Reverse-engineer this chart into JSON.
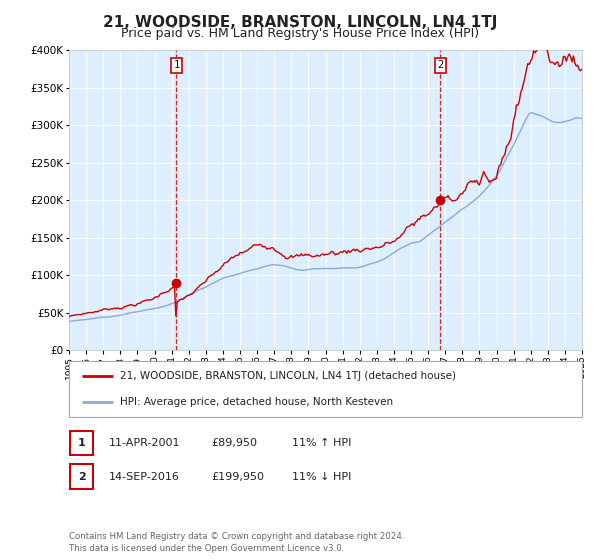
{
  "title": "21, WOODSIDE, BRANSTON, LINCOLN, LN4 1TJ",
  "subtitle": "Price paid vs. HM Land Registry's House Price Index (HPI)",
  "legend_line1": "21, WOODSIDE, BRANSTON, LINCOLN, LN4 1TJ (detached house)",
  "legend_line2": "HPI: Average price, detached house, North Kesteven",
  "annotation1_date": "11-APR-2001",
  "annotation1_price": "£89,950",
  "annotation1_hpi": "11% ↑ HPI",
  "annotation1_year": 2001.28,
  "annotation1_value": 89950,
  "annotation2_date": "14-SEP-2016",
  "annotation2_price": "£199,950",
  "annotation2_hpi": "11% ↓ HPI",
  "annotation2_year": 2016.71,
  "annotation2_value": 199950,
  "xmin": 1995,
  "xmax": 2025,
  "ymin": 0,
  "ymax": 400000,
  "red_color": "#cc0000",
  "blue_color": "#88aadd",
  "bg_color": "#ddeeff",
  "grid_color": "#ffffff",
  "title_fontsize": 11,
  "subtitle_fontsize": 9,
  "footer_text": "Contains HM Land Registry data © Crown copyright and database right 2024.\nThis data is licensed under the Open Government Licence v3.0."
}
